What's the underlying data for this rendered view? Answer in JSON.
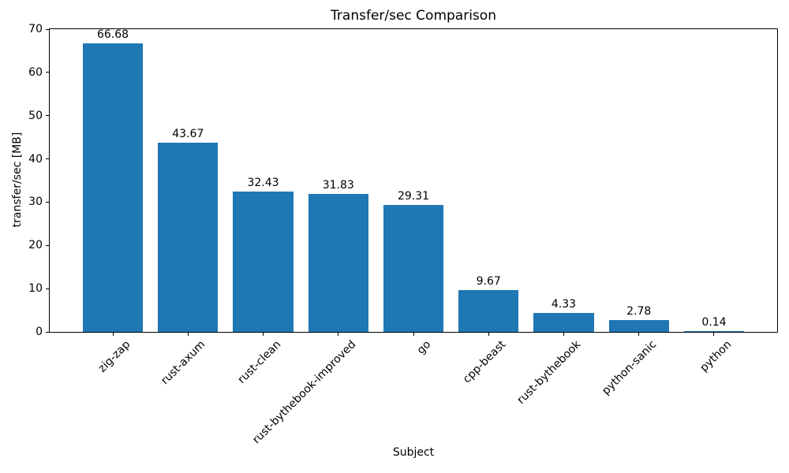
{
  "chart_data": {
    "type": "bar",
    "title": "Transfer/sec Comparison",
    "xlabel": "Subject",
    "ylabel": "transfer/sec [MB]",
    "categories": [
      "zig-zap",
      "rust-axum",
      "rust-clean",
      "rust-bythebook-improved",
      "go",
      "cpp-beast",
      "rust-bythebook",
      "python-sanic",
      "python"
    ],
    "values": [
      66.68,
      43.67,
      32.43,
      31.83,
      29.31,
      9.67,
      4.33,
      2.78,
      0.14
    ],
    "value_labels": [
      "66.68",
      "43.67",
      "32.43",
      "31.83",
      "29.31",
      "9.67",
      "4.33",
      "2.78",
      "0.14"
    ],
    "yticks": [
      0,
      10,
      20,
      30,
      40,
      50,
      60,
      70
    ],
    "ylim": [
      0,
      70
    ],
    "bar_color": "#1f77b4",
    "grid": false,
    "legend_position": "none",
    "x_tick_rotation_deg": 45
  }
}
